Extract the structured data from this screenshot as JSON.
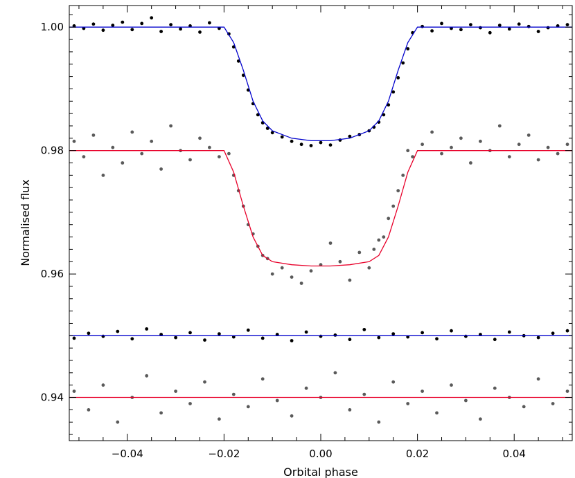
{
  "chart_data": {
    "type": "scatter",
    "title": "",
    "xlabel": "Orbital phase",
    "ylabel": "Normalised flux",
    "xlim": [
      -0.052,
      0.052
    ],
    "ylim": [
      0.933,
      1.0035
    ],
    "xticks": [
      -0.04,
      -0.02,
      0.0,
      0.02,
      0.04
    ],
    "xtick_labels": [
      "−0.04",
      "−0.02",
      "0.00",
      "0.02",
      "0.04"
    ],
    "yticks": [
      0.94,
      0.96,
      0.98,
      1.0
    ],
    "ytick_labels": [
      "0.94",
      "0.96",
      "0.98",
      "1.00"
    ],
    "grid": false,
    "legend": "none",
    "series": [
      {
        "kind": "points",
        "color": "#000000",
        "x": [
          -0.051,
          -0.049,
          -0.047,
          -0.045,
          -0.043,
          -0.041,
          -0.039,
          -0.037,
          -0.035,
          -0.033,
          -0.031,
          -0.029,
          -0.027,
          -0.025,
          -0.023,
          -0.021,
          -0.019,
          -0.018,
          -0.017,
          -0.016,
          -0.015,
          -0.014,
          -0.013,
          -0.012,
          -0.011,
          -0.01,
          -0.008,
          -0.006,
          -0.004,
          -0.002,
          0.0,
          0.002,
          0.004,
          0.006,
          0.008,
          0.01,
          0.011,
          0.012,
          0.013,
          0.014,
          0.015,
          0.016,
          0.017,
          0.018,
          0.019,
          0.021,
          0.023,
          0.025,
          0.027,
          0.029,
          0.031,
          0.033,
          0.035,
          0.037,
          0.039,
          0.041,
          0.043,
          0.045,
          0.047,
          0.049,
          0.051
        ],
        "y": [
          1.0002,
          0.9998,
          1.0005,
          0.9995,
          1.0003,
          1.0008,
          0.9996,
          1.0006,
          1.0015,
          0.9993,
          1.0004,
          0.9997,
          1.0002,
          0.9992,
          1.0007,
          0.9998,
          0.9989,
          0.9968,
          0.9945,
          0.9922,
          0.9898,
          0.9876,
          0.9858,
          0.9845,
          0.9836,
          0.9829,
          0.9822,
          0.9815,
          0.981,
          0.9808,
          0.9813,
          0.9809,
          0.9817,
          0.9823,
          0.9826,
          0.9832,
          0.9838,
          0.9846,
          0.9858,
          0.9874,
          0.9895,
          0.9918,
          0.9942,
          0.9965,
          0.9991,
          1.0001,
          0.9994,
          1.0006,
          0.9998,
          0.9996,
          1.0004,
          0.9999,
          0.9991,
          1.0003,
          0.9997,
          1.0005,
          1.0001,
          0.9993,
          0.9999,
          1.0002,
          1.0004
        ]
      },
      {
        "kind": "model",
        "color": "#0000cc",
        "x": [
          -0.052,
          -0.02,
          -0.018,
          -0.016,
          -0.014,
          -0.012,
          -0.01,
          -0.006,
          -0.002,
          0.002,
          0.006,
          0.01,
          0.012,
          0.014,
          0.016,
          0.018,
          0.02,
          0.052
        ],
        "y": [
          1.0,
          1.0,
          0.9975,
          0.993,
          0.988,
          0.9848,
          0.9832,
          0.982,
          0.9816,
          0.9816,
          0.982,
          0.9832,
          0.9848,
          0.988,
          0.993,
          0.9975,
          1.0,
          1.0
        ]
      },
      {
        "kind": "points",
        "color": "#5a5a5a",
        "x": [
          -0.051,
          -0.049,
          -0.047,
          -0.045,
          -0.043,
          -0.041,
          -0.039,
          -0.037,
          -0.035,
          -0.033,
          -0.031,
          -0.029,
          -0.027,
          -0.025,
          -0.023,
          -0.021,
          -0.019,
          -0.018,
          -0.017,
          -0.016,
          -0.015,
          -0.014,
          -0.013,
          -0.012,
          -0.011,
          -0.01,
          -0.008,
          -0.006,
          -0.004,
          -0.002,
          0.0,
          0.002,
          0.004,
          0.006,
          0.008,
          0.01,
          0.011,
          0.012,
          0.013,
          0.014,
          0.015,
          0.016,
          0.017,
          0.018,
          0.019,
          0.021,
          0.023,
          0.025,
          0.027,
          0.029,
          0.031,
          0.033,
          0.035,
          0.037,
          0.039,
          0.041,
          0.043,
          0.045,
          0.047,
          0.049,
          0.051
        ],
        "y": [
          0.9815,
          0.979,
          0.9825,
          0.976,
          0.9805,
          0.978,
          0.983,
          0.9795,
          0.9815,
          0.977,
          0.984,
          0.98,
          0.9785,
          0.982,
          0.9805,
          0.979,
          0.9795,
          0.976,
          0.9735,
          0.971,
          0.968,
          0.9665,
          0.9645,
          0.963,
          0.9625,
          0.96,
          0.961,
          0.9595,
          0.9585,
          0.9605,
          0.9615,
          0.965,
          0.962,
          0.959,
          0.9635,
          0.961,
          0.964,
          0.9655,
          0.966,
          0.969,
          0.971,
          0.9735,
          0.976,
          0.98,
          0.979,
          0.981,
          0.983,
          0.9795,
          0.9805,
          0.982,
          0.978,
          0.9815,
          0.98,
          0.984,
          0.979,
          0.981,
          0.9825,
          0.9785,
          0.9805,
          0.9795,
          0.981
        ]
      },
      {
        "kind": "model",
        "color": "#e8002a",
        "x": [
          -0.052,
          -0.02,
          -0.018,
          -0.016,
          -0.014,
          -0.012,
          -0.01,
          -0.006,
          -0.002,
          0.002,
          0.006,
          0.01,
          0.012,
          0.014,
          0.016,
          0.018,
          0.02,
          0.052
        ],
        "y": [
          0.98,
          0.98,
          0.9765,
          0.971,
          0.966,
          0.963,
          0.962,
          0.9615,
          0.9613,
          0.9613,
          0.9615,
          0.962,
          0.963,
          0.966,
          0.971,
          0.9765,
          0.98,
          0.98
        ]
      },
      {
        "kind": "points",
        "color": "#000000",
        "x": [
          -0.051,
          -0.048,
          -0.045,
          -0.042,
          -0.039,
          -0.036,
          -0.033,
          -0.03,
          -0.027,
          -0.024,
          -0.021,
          -0.018,
          -0.015,
          -0.012,
          -0.009,
          -0.006,
          -0.003,
          0.0,
          0.003,
          0.006,
          0.009,
          0.012,
          0.015,
          0.018,
          0.021,
          0.024,
          0.027,
          0.03,
          0.033,
          0.036,
          0.039,
          0.042,
          0.045,
          0.048,
          0.051
        ],
        "y": [
          0.9496,
          0.9504,
          0.9499,
          0.9507,
          0.9495,
          0.9511,
          0.9502,
          0.9497,
          0.9505,
          0.9493,
          0.9503,
          0.9498,
          0.9509,
          0.9496,
          0.9502,
          0.9492,
          0.9506,
          0.9499,
          0.9501,
          0.9494,
          0.951,
          0.9497,
          0.9503,
          0.9498,
          0.9505,
          0.9495,
          0.9508,
          0.9499,
          0.9502,
          0.9494,
          0.9506,
          0.95,
          0.9497,
          0.9504,
          0.9508
        ]
      },
      {
        "kind": "model",
        "color": "#0000cc",
        "x": [
          -0.052,
          0.052
        ],
        "y": [
          0.95,
          0.95
        ]
      },
      {
        "kind": "points",
        "color": "#5a5a5a",
        "x": [
          -0.051,
          -0.048,
          -0.045,
          -0.042,
          -0.039,
          -0.036,
          -0.033,
          -0.03,
          -0.027,
          -0.024,
          -0.021,
          -0.018,
          -0.015,
          -0.012,
          -0.009,
          -0.006,
          -0.003,
          0.0,
          0.003,
          0.006,
          0.009,
          0.012,
          0.015,
          0.018,
          0.021,
          0.024,
          0.027,
          0.03,
          0.033,
          0.036,
          0.039,
          0.042,
          0.045,
          0.048,
          0.051
        ],
        "y": [
          0.941,
          0.938,
          0.942,
          0.936,
          0.94,
          0.9435,
          0.9375,
          0.941,
          0.939,
          0.9425,
          0.9365,
          0.9405,
          0.9385,
          0.943,
          0.9395,
          0.937,
          0.9415,
          0.94,
          0.944,
          0.938,
          0.9405,
          0.936,
          0.9425,
          0.939,
          0.941,
          0.9375,
          0.942,
          0.9395,
          0.9365,
          0.9415,
          0.94,
          0.9385,
          0.943,
          0.939,
          0.941
        ]
      },
      {
        "kind": "model",
        "color": "#e8002a",
        "x": [
          -0.052,
          0.052
        ],
        "y": [
          0.94,
          0.94
        ]
      }
    ]
  }
}
